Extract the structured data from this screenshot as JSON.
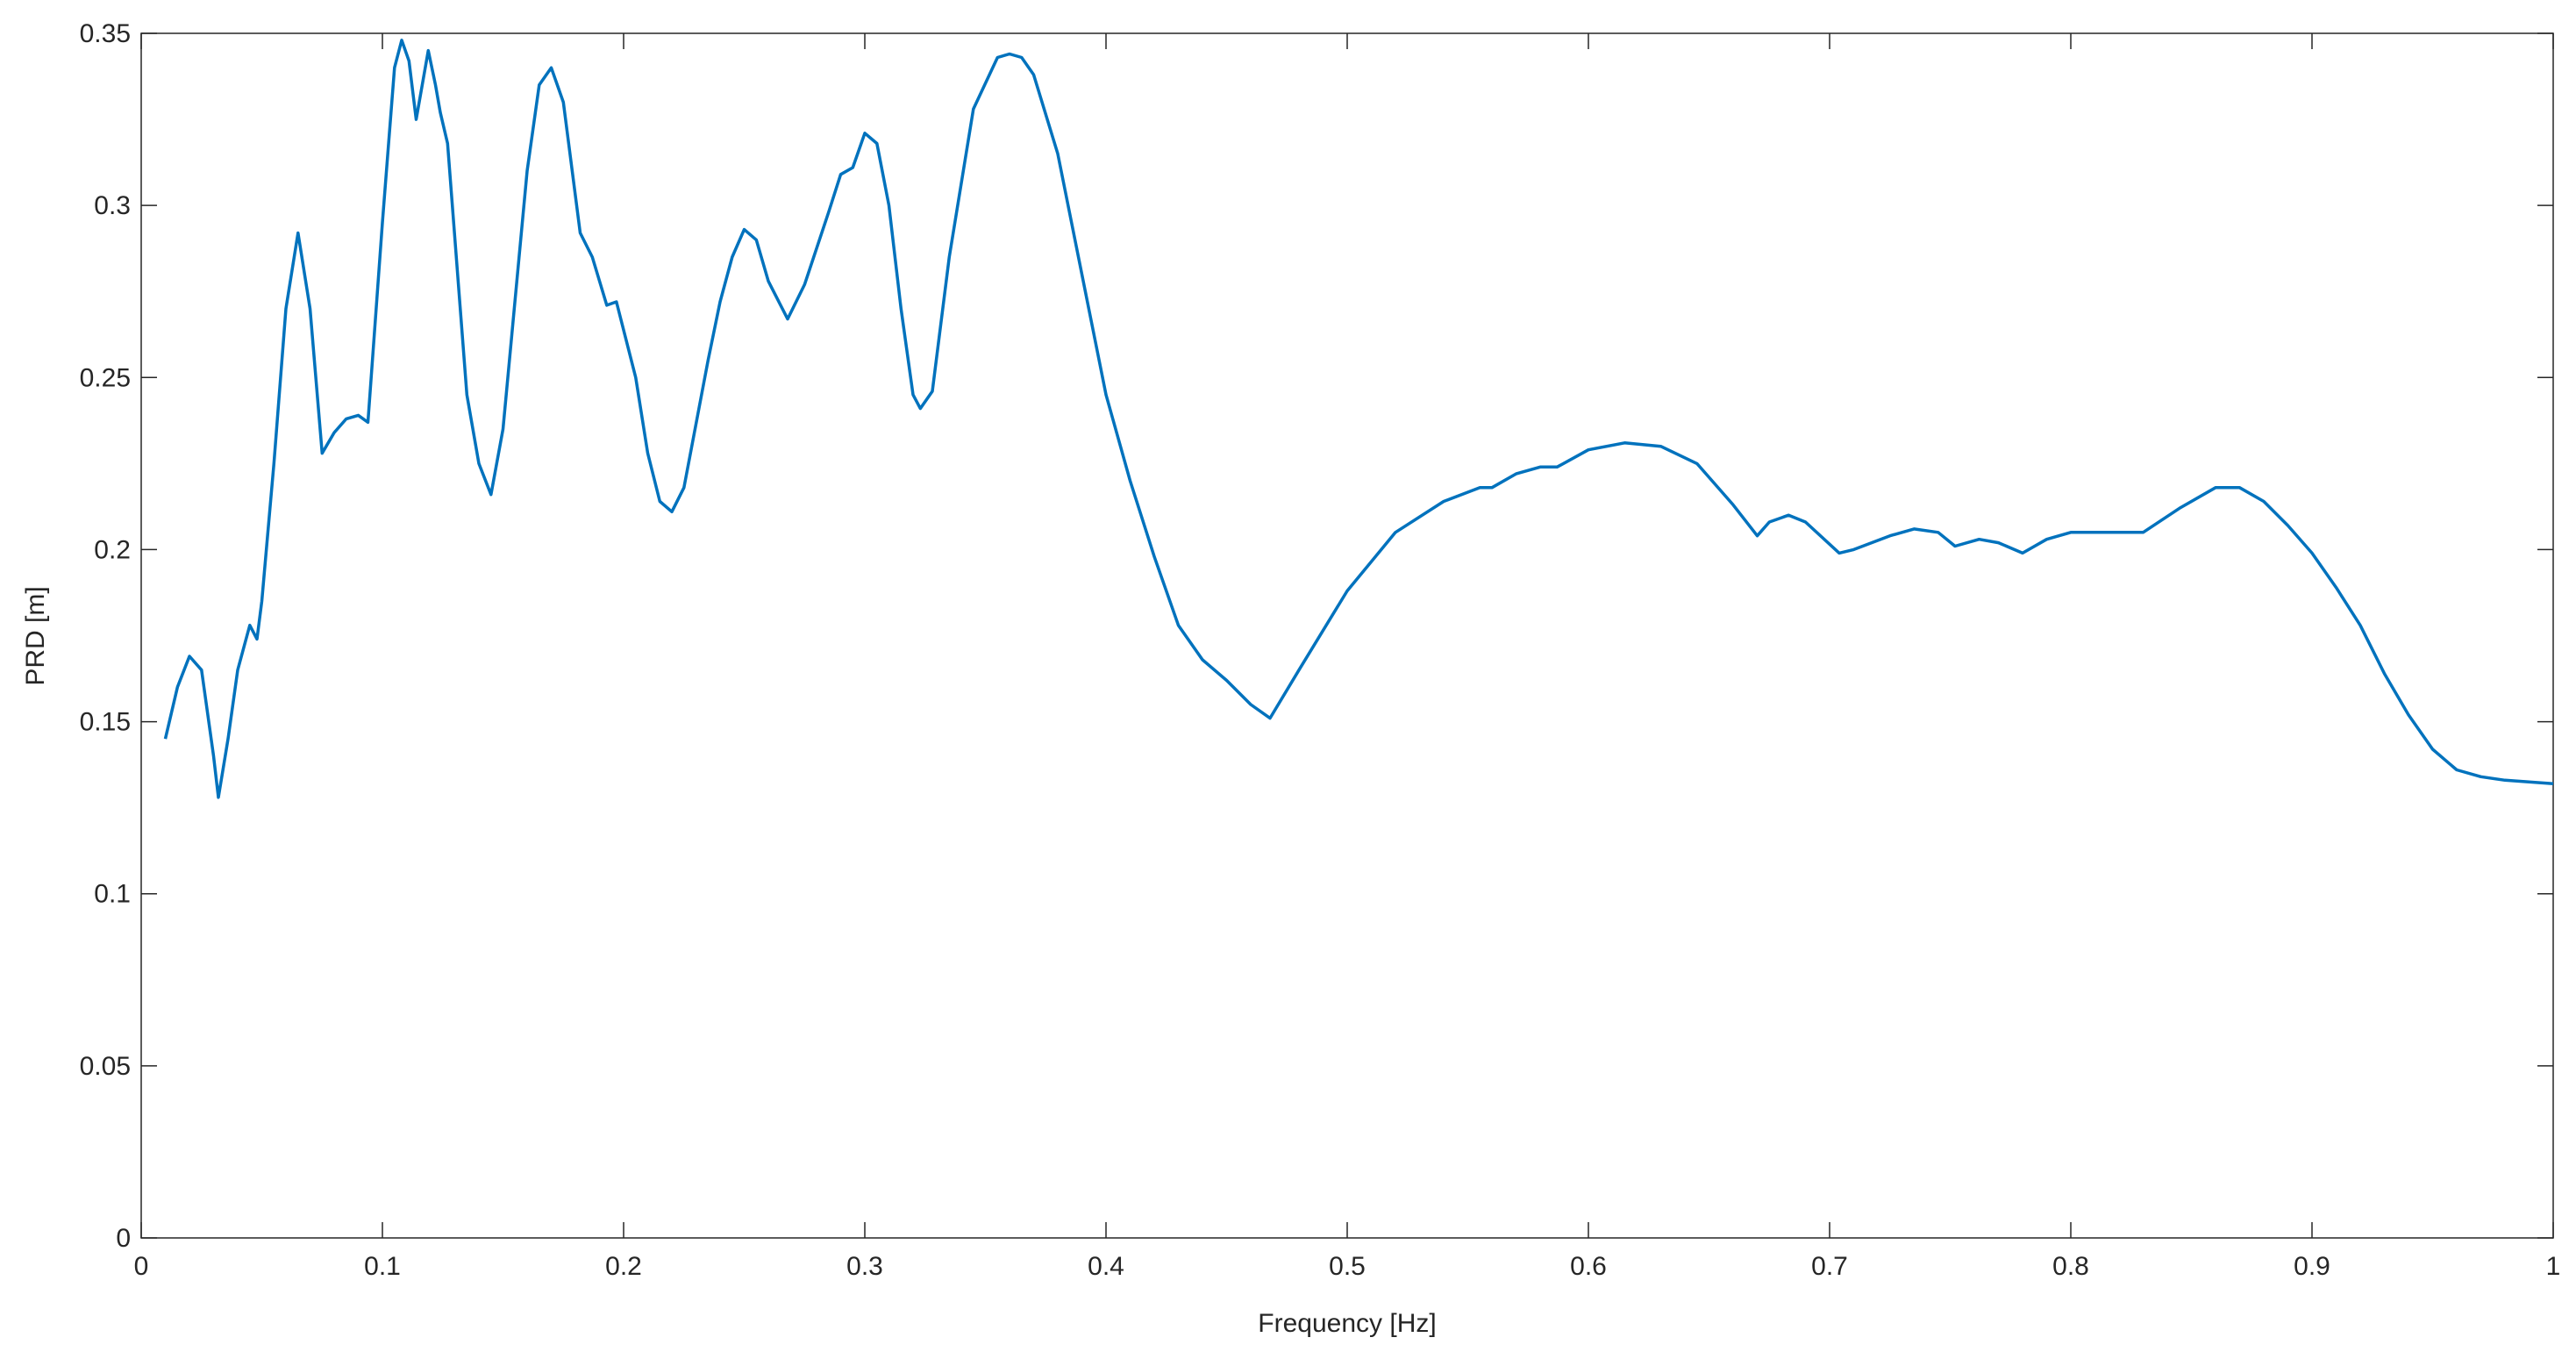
{
  "chart_data": {
    "type": "line",
    "xlabel": "Frequency [Hz]",
    "ylabel": "PRD [m]",
    "color": "#0072bd",
    "x": [
      0.01,
      0.015,
      0.02,
      0.025,
      0.03,
      0.032,
      0.036,
      0.04,
      0.045,
      0.048,
      0.05,
      0.055,
      0.06,
      0.065,
      0.07,
      0.075,
      0.08,
      0.085,
      0.09,
      0.094,
      0.1,
      0.105,
      0.108,
      0.111,
      0.114,
      0.119,
      0.122,
      0.124,
      0.127,
      0.135,
      0.14,
      0.145,
      0.15,
      0.16,
      0.165,
      0.17,
      0.175,
      0.182,
      0.187,
      0.193,
      0.197,
      0.205,
      0.21,
      0.215,
      0.22,
      0.225,
      0.235,
      0.24,
      0.245,
      0.25,
      0.255,
      0.26,
      0.268,
      0.275,
      0.285,
      0.29,
      0.295,
      0.3,
      0.305,
      0.31,
      0.315,
      0.32,
      0.323,
      0.328,
      0.335,
      0.345,
      0.355,
      0.36,
      0.365,
      0.37,
      0.38,
      0.39,
      0.4,
      0.41,
      0.42,
      0.43,
      0.44,
      0.45,
      0.46,
      0.468,
      0.48,
      0.5,
      0.52,
      0.54,
      0.555,
      0.56,
      0.57,
      0.58,
      0.587,
      0.6,
      0.615,
      0.63,
      0.645,
      0.66,
      0.67,
      0.675,
      0.683,
      0.69,
      0.704,
      0.71,
      0.725,
      0.735,
      0.745,
      0.752,
      0.762,
      0.77,
      0.78,
      0.79,
      0.8,
      0.82,
      0.83,
      0.845,
      0.86,
      0.87,
      0.88,
      0.89,
      0.9,
      0.91,
      0.92,
      0.93,
      0.94,
      0.95,
      0.96,
      0.97,
      0.98,
      1.0
    ],
    "values": [
      0.145,
      0.16,
      0.169,
      0.165,
      0.14,
      0.128,
      0.145,
      0.165,
      0.178,
      0.174,
      0.185,
      0.225,
      0.27,
      0.292,
      0.27,
      0.228,
      0.234,
      0.238,
      0.239,
      0.237,
      0.295,
      0.34,
      0.348,
      0.342,
      0.325,
      0.345,
      0.335,
      0.327,
      0.318,
      0.245,
      0.225,
      0.216,
      0.235,
      0.31,
      0.335,
      0.34,
      0.33,
      0.292,
      0.285,
      0.271,
      0.272,
      0.25,
      0.228,
      0.214,
      0.211,
      0.218,
      0.255,
      0.272,
      0.285,
      0.293,
      0.29,
      0.278,
      0.267,
      0.277,
      0.298,
      0.309,
      0.311,
      0.321,
      0.318,
      0.3,
      0.27,
      0.245,
      0.241,
      0.246,
      0.285,
      0.328,
      0.343,
      0.344,
      0.343,
      0.338,
      0.315,
      0.28,
      0.245,
      0.22,
      0.198,
      0.178,
      0.168,
      0.162,
      0.155,
      0.151,
      0.165,
      0.188,
      0.205,
      0.214,
      0.218,
      0.218,
      0.222,
      0.224,
      0.224,
      0.229,
      0.231,
      0.23,
      0.225,
      0.213,
      0.204,
      0.208,
      0.21,
      0.208,
      0.199,
      0.2,
      0.204,
      0.206,
      0.205,
      0.201,
      0.203,
      0.202,
      0.199,
      0.203,
      0.205,
      0.205,
      0.205,
      0.212,
      0.218,
      0.218,
      0.214,
      0.207,
      0.199,
      0.189,
      0.178,
      0.164,
      0.152,
      0.142,
      0.136,
      0.134,
      0.133,
      0.132
    ],
    "xlim": [
      0,
      1
    ],
    "xticks": [
      0,
      0.1,
      0.2,
      0.3,
      0.4,
      0.5,
      0.6,
      0.7,
      0.8,
      0.9,
      1
    ],
    "ylim": [
      0,
      0.35
    ],
    "yticks": [
      0,
      0.05,
      0.1,
      0.15,
      0.2,
      0.25,
      0.3,
      0.35
    ],
    "grid": false
  }
}
